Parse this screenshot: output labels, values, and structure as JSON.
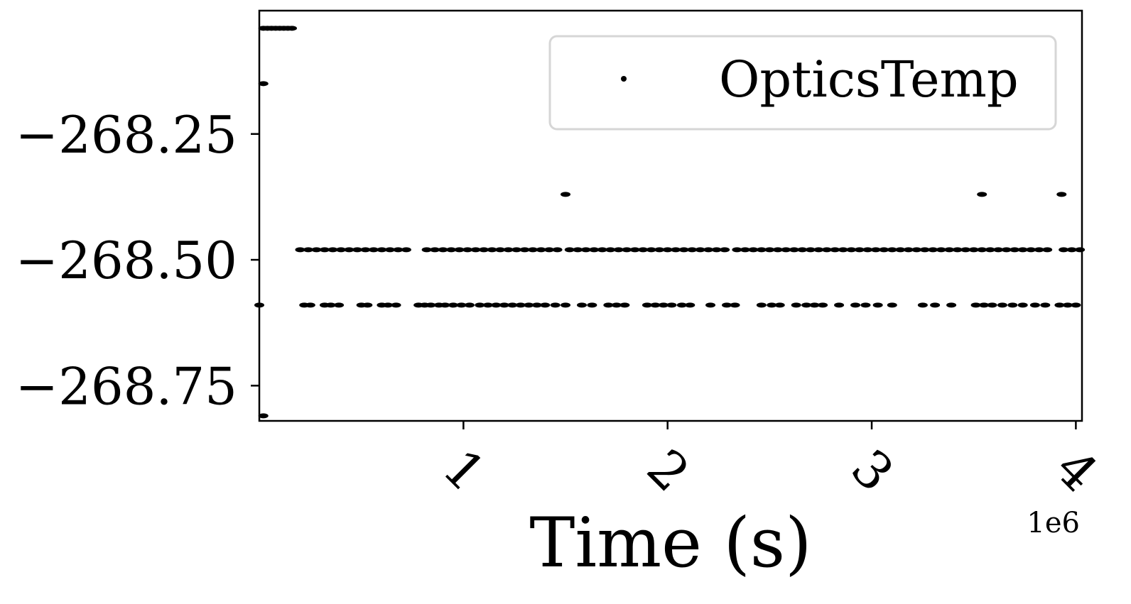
{
  "chart_data": {
    "type": "scatter",
    "title": "",
    "xlabel": "Time (s)",
    "ylabel": "",
    "x_scale_label": "1e6",
    "x_scale_factor": 1000000,
    "xlim": [
      0,
      4.03
    ],
    "ylim": [
      -268.82,
      -268.005
    ],
    "xticks": [
      1,
      2,
      3,
      4
    ],
    "xtick_labels": [
      "1",
      "2",
      "3",
      "4"
    ],
    "yticks": [
      -268.25,
      -268.5,
      -268.75
    ],
    "ytick_labels": [
      "−268.25",
      "−268.50",
      "−268.75"
    ],
    "grid": false,
    "legend": {
      "placement": "top-right",
      "entries": [
        "OpticsTemp"
      ]
    },
    "series": [
      {
        "name": "OpticsTemp",
        "color": "#000000",
        "marker": "point",
        "levels": [
          {
            "y": -268.04,
            "x": [
              0.02,
              0.04,
              0.06,
              0.08,
              0.1,
              0.12,
              0.14,
              0.16
            ]
          },
          {
            "y": -268.15,
            "x": [
              0.02
            ]
          },
          {
            "y": -268.37,
            "x": [
              1.5,
              3.54,
              3.93
            ]
          },
          {
            "y": -268.48,
            "x": [
              0.2,
              0.24,
              0.28,
              0.32,
              0.36,
              0.4,
              0.44,
              0.48,
              0.52,
              0.56,
              0.6,
              0.64,
              0.68,
              0.72,
              0.82,
              0.86,
              0.9,
              0.94,
              0.98,
              1.02,
              1.06,
              1.1,
              1.14,
              1.18,
              1.22,
              1.26,
              1.3,
              1.34,
              1.38,
              1.42,
              1.46,
              1.52,
              1.56,
              1.6,
              1.64,
              1.68,
              1.72,
              1.76,
              1.8,
              1.84,
              1.88,
              1.92,
              1.96,
              2.0,
              2.04,
              2.08,
              2.12,
              2.16,
              2.2,
              2.24,
              2.28,
              2.34,
              2.38,
              2.42,
              2.46,
              2.5,
              2.54,
              2.58,
              2.62,
              2.66,
              2.7,
              2.74,
              2.78,
              2.82,
              2.86,
              2.9,
              2.94,
              2.98,
              3.02,
              3.06,
              3.1,
              3.14,
              3.18,
              3.22,
              3.26,
              3.3,
              3.34,
              3.38,
              3.42,
              3.46,
              3.5,
              3.54,
              3.58,
              3.62,
              3.66,
              3.7,
              3.74,
              3.78,
              3.82,
              3.86,
              3.94,
              3.98,
              4.02
            ]
          },
          {
            "y": -268.59,
            "x": [
              0.0,
              0.22,
              0.25,
              0.32,
              0.35,
              0.39,
              0.5,
              0.53,
              0.6,
              0.63,
              0.67,
              0.78,
              0.81,
              0.84,
              0.88,
              0.91,
              0.95,
              0.99,
              1.03,
              1.08,
              1.12,
              1.16,
              1.2,
              1.24,
              1.28,
              1.32,
              1.36,
              1.4,
              1.45,
              1.5,
              1.58,
              1.63,
              1.71,
              1.75,
              1.79,
              1.9,
              1.94,
              1.98,
              2.02,
              2.07,
              2.11,
              2.21,
              2.29,
              2.33,
              2.46,
              2.51,
              2.55,
              2.63,
              2.68,
              2.72,
              2.76,
              2.84,
              2.92,
              2.97,
              3.03,
              3.1,
              3.25,
              3.31,
              3.39,
              3.51,
              3.55,
              3.59,
              3.64,
              3.69,
              3.74,
              3.8,
              3.85,
              3.92,
              3.96,
              4.0
            ]
          },
          {
            "y": -268.81,
            "x": [
              0.02
            ]
          }
        ]
      }
    ]
  }
}
